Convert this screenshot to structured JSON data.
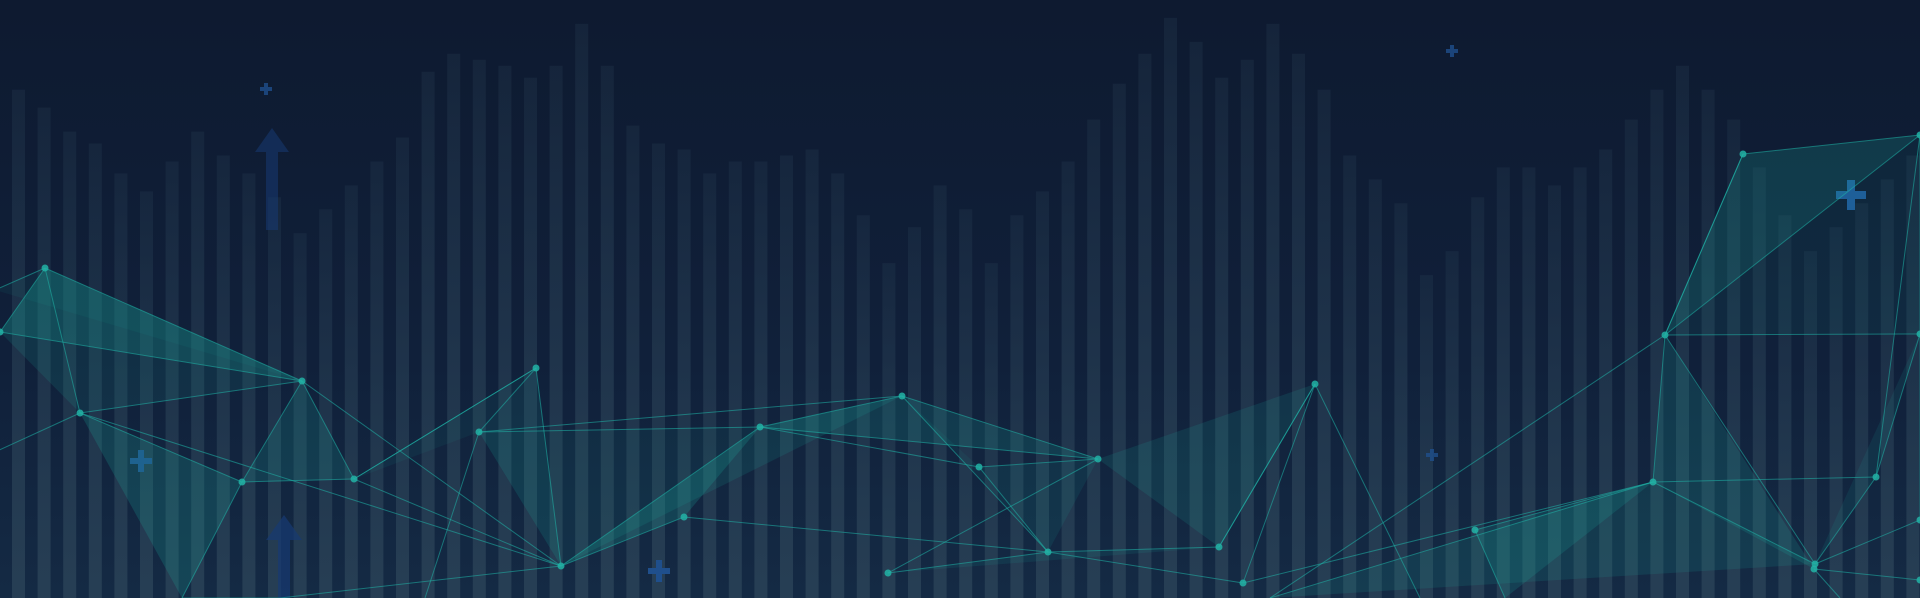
{
  "banner": {
    "background_color": "#0f1b31",
    "bar_color": "#2a4257",
    "mesh_line_color": "#1fb5a8",
    "mesh_fill_color": "#1aa89b",
    "node_color": "#22b3a6",
    "plus_color": "#1f4f8c",
    "arrow_color": "#173a73",
    "bar_levels": [
      0.85,
      0.82,
      0.78,
      0.76,
      0.71,
      0.68,
      0.73,
      0.78,
      0.74,
      0.71,
      0.67,
      0.61,
      0.65,
      0.69,
      0.73,
      0.77,
      0.88,
      0.91,
      0.9,
      0.89,
      0.87,
      0.89,
      0.96,
      0.89,
      0.79,
      0.76,
      0.75,
      0.71,
      0.73,
      0.73,
      0.74,
      0.75,
      0.71,
      0.64,
      0.56,
      0.62,
      0.69,
      0.65,
      0.56,
      0.64,
      0.68,
      0.73,
      0.8,
      0.86,
      0.91,
      0.97,
      0.93,
      0.87,
      0.9,
      0.96,
      0.91,
      0.85,
      0.74,
      0.7,
      0.66,
      0.54,
      0.58,
      0.67,
      0.72,
      0.72,
      0.69,
      0.72,
      0.75,
      0.8,
      0.85,
      0.89,
      0.85,
      0.8,
      0.72,
      0.64,
      0.58,
      0.62,
      0.66,
      0.7,
      0.74
    ]
  }
}
